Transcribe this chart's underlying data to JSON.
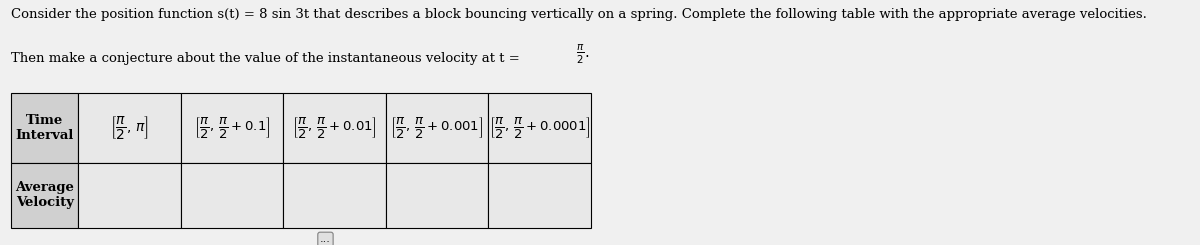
{
  "title_line1": "Consider the position function s(t) = 8 sin 3t that describes a block bouncing vertically on a spring. Complete the following table with the appropriate average velocities.",
  "title_line2": "Then make a conjecture about the value of the instantaneous velocity at t = π/2.",
  "bg_color": "#f0f0f0",
  "table_bg": "#d8d8d8",
  "header_bg": "#d8d8d8",
  "row_labels": [
    "Time\nInterval",
    "Average\nVelocity"
  ],
  "col0_interval": [
    "π/2",
    "π"
  ],
  "col1_interval": [
    "π/2",
    "π/2 + 0.1"
  ],
  "col2_interval": [
    "π/2",
    "π/2 + 0.01"
  ],
  "col3_interval": [
    "π/2",
    "π/2 + 0.001"
  ],
  "col4_interval": [
    "π/2",
    "π/2 + 0.0001"
  ],
  "col0_vel": "",
  "col1_vel": "",
  "col2_vel": "",
  "col3_vel": "",
  "col4_vel": "",
  "dots_button": "...",
  "title_fontsize": 9.5,
  "table_fontsize": 9.5
}
